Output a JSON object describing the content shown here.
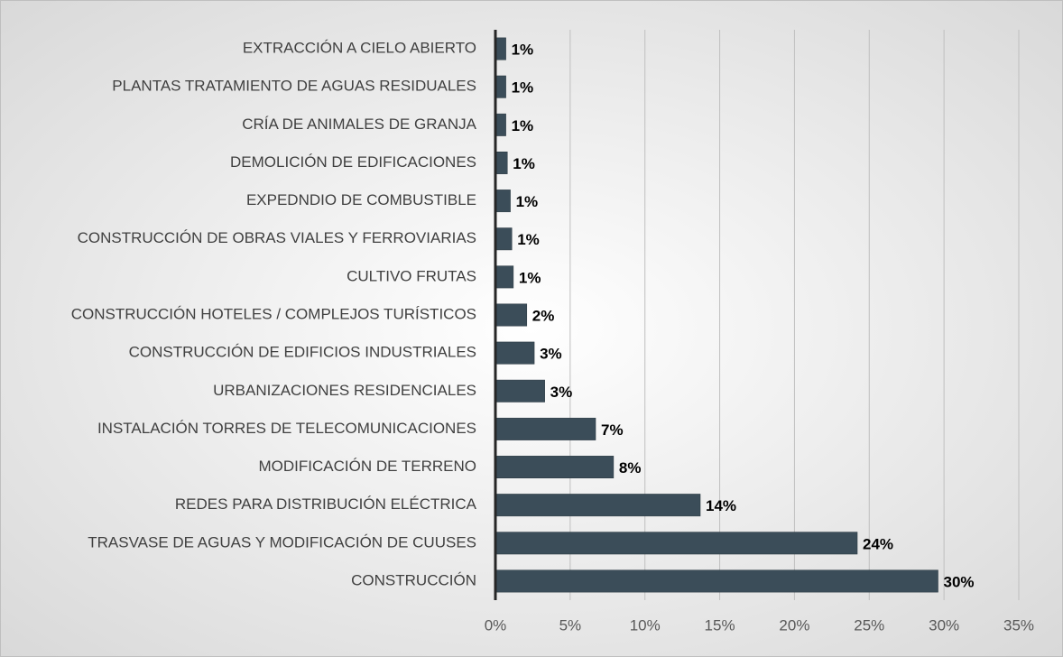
{
  "chart_data": {
    "type": "bar",
    "orientation": "horizontal",
    "categories": [
      "EXTRACCIÓN A CIELO ABIERTO",
      "PLANTAS TRATAMIENTO DE AGUAS RESIDUALES",
      "CRÍA DE ANIMALES DE GRANJA",
      "DEMOLICIÓN DE EDIFICACIONES",
      "EXPEDNDIO DE COMBUSTIBLE",
      "CONSTRUCCIÓN DE OBRAS VIALES Y FERROVIARIAS",
      "CULTIVO FRUTAS",
      "CONSTRUCCIÓN HOTELES / COMPLEJOS TURÍSTICOS",
      "CONSTRUCCIÓN DE EDIFICIOS INDUSTRIALES",
      "URBANIZACIONES RESIDENCIALES",
      "INSTALACIÓN TORRES DE TELECOMUNICACIONES",
      "MODIFICACIÓN DE TERRENO",
      "REDES PARA DISTRIBUCIÓN ELÉCTRICA",
      "TRASVASE DE AGUAS Y MODIFICACIÓN DE CUUSES",
      "CONSTRUCCIÓN"
    ],
    "values": [
      0.7,
      0.7,
      0.7,
      0.8,
      1.0,
      1.1,
      1.2,
      2.1,
      2.6,
      3.3,
      6.7,
      7.9,
      13.7,
      24.2,
      29.6
    ],
    "value_labels": [
      "1%",
      "1%",
      "1%",
      "1%",
      "1%",
      "1%",
      "1%",
      "2%",
      "3%",
      "3%",
      "7%",
      "8%",
      "14%",
      "24%",
      "30%"
    ],
    "color": "#3b4d59",
    "xlim": [
      0,
      35
    ],
    "xticks": [
      {
        "value": 0,
        "label": "0%"
      },
      {
        "value": 5,
        "label": "5%"
      },
      {
        "value": 10,
        "label": "10%"
      },
      {
        "value": 15,
        "label": "15%"
      },
      {
        "value": 20,
        "label": "20%"
      },
      {
        "value": 25,
        "label": "25%"
      },
      {
        "value": 30,
        "label": "30%"
      },
      {
        "value": 35,
        "label": "35%"
      }
    ],
    "grid": true
  }
}
